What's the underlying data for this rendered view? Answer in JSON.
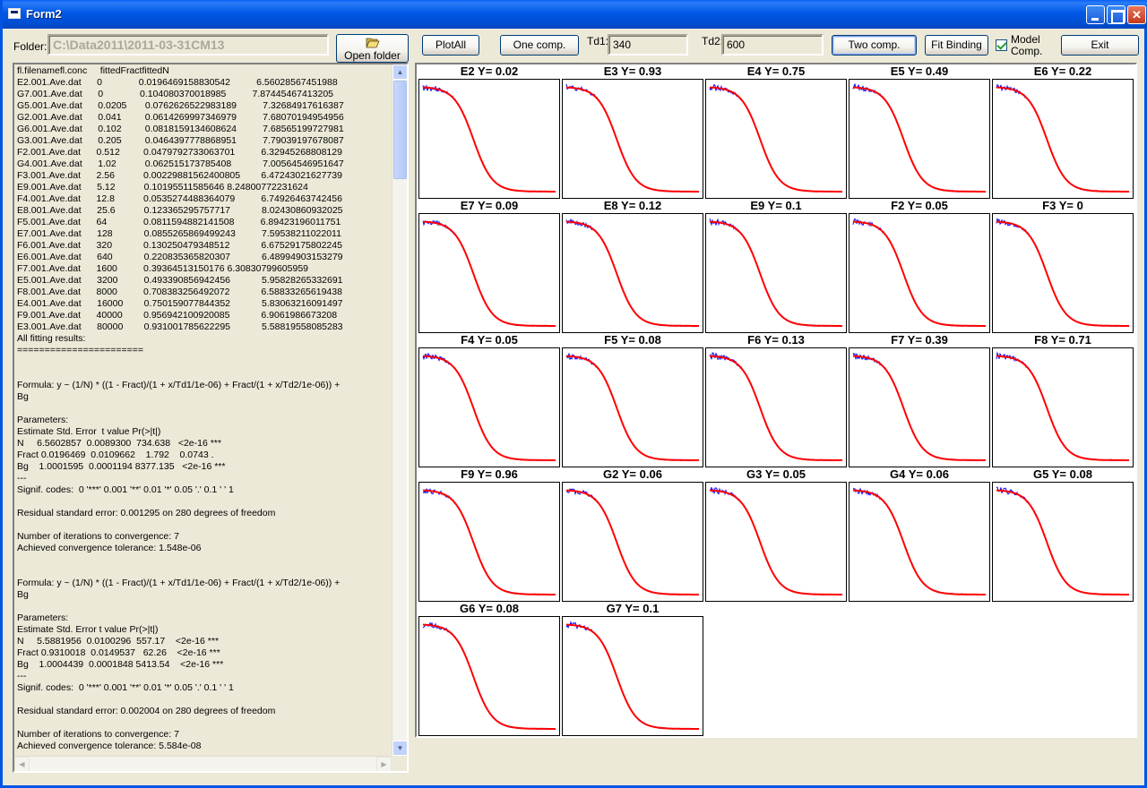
{
  "window": {
    "title": "Form2"
  },
  "folder": {
    "label": "Folder:",
    "path": "C:\\Data2011\\2011-03-31CM13",
    "open_label": "Open folder"
  },
  "toolbar": {
    "plotall": "PlotAll",
    "one_comp": "One comp.",
    "td1_label": "Td1:",
    "td1_value": "340",
    "td2_label": "Td2:",
    "td2_value": "600",
    "two_comp": "Two comp.",
    "fit_binding": "Fit Binding",
    "model_comp_line1": "Model",
    "model_comp_line2": "Comp.",
    "model_comp_checked": true,
    "exit": "Exit"
  },
  "results": {
    "lines": [
      "fl.filenamefl.conc     fittedFractfittedN",
      "E2.001.Ave.dat      0              0.0196469158830542          6.56028567451988",
      "G7.001.Ave.dat      0              0.104080370018985          7.87445467413205",
      "G5.001.Ave.dat      0.0205       0.0762626522983189          7.32684917616387",
      "G2.001.Ave.dat      0.041         0.0614269997346979          7.68070194954956",
      "G6.001.Ave.dat      0.102         0.0818159134608624          7.68565199727981",
      "G3.001.Ave.dat      0.205         0.0464397778868951          7.79039197678087",
      "F2.001.Ave.dat      0.512         0.0479792733063701          6.32945268808129",
      "G4.001.Ave.dat      1.02           0.062515173785408            7.00564546951647",
      "F3.001.Ave.dat      2.56           0.00229881562400805        6.47243021627739",
      "E9.001.Ave.dat      5.12           0.10195511585646 8.24800772231624",
      "F4.001.Ave.dat      12.8           0.0535274488364079          6.74926463742456",
      "E8.001.Ave.dat      25.6           0.123365295757717            8.02430860932025",
      "F5.001.Ave.dat      64              0.0811594882141508          6.89423196011751",
      "E7.001.Ave.dat      128            0.0855265869499243          7.59538211022011",
      "F6.001.Ave.dat      320            0.130250479348512            6.67529175802245",
      "E6.001.Ave.dat      640            0.220835365820307            6.48994903153279",
      "F7.001.Ave.dat      1600          0.39364513150176 6.30830799605959",
      "E5.001.Ave.dat      3200          0.493390856942456            5.95828265332691",
      "F8.001.Ave.dat      8000          0.708383256492072            6.58833265619438",
      "E4.001.Ave.dat      16000        0.750159077844352            5.83063216091497",
      "F9.001.Ave.dat      40000        0.956942100920085            6.9061986673208",
      "E3.001.Ave.dat      80000        0.931001785622295            5.58819558085283",
      "All fitting results:",
      "=======================",
      "",
      "",
      "Formula: y ~ (1/N) * ((1 - Fract)/(1 + x/Td1/1e-06) + Fract/(1 + x/Td2/1e-06)) +",
      "Bg",
      "",
      "Parameters:",
      "Estimate Std. Error  t value Pr(>|t|)",
      "N     6.5602857  0.0089300  734.638   <2e-16 ***",
      "Fract 0.0196469  0.0109662    1.792    0.0743 .",
      "Bg    1.0001595  0.0001194 8377.135   <2e-16 ***",
      "---",
      "Signif. codes:  0 '***' 0.001 '**' 0.01 '*' 0.05 '.' 0.1 ' ' 1",
      "",
      "Residual standard error: 0.001295 on 280 degrees of freedom",
      "",
      "Number of iterations to convergence: 7",
      "Achieved convergence tolerance: 1.548e-06",
      "",
      "",
      "Formula: y ~ (1/N) * ((1 - Fract)/(1 + x/Td1/1e-06) + Fract/(1 + x/Td2/1e-06)) +",
      "Bg",
      "",
      "Parameters:",
      "Estimate Std. Error t value Pr(>|t|)",
      "N     5.5881956  0.0100296  557.17    <2e-16 ***",
      "Fract 0.9310018  0.0149537   62.26    <2e-16 ***",
      "Bg    1.0004439  0.0001848 5413.54    <2e-16 ***",
      "---",
      "Signif. codes:  0 '***' 0.001 '**' 0.01 '*' 0.05 '.' 0.1 ' ' 1",
      "",
      "Residual standard error: 0.002004 on 280 degrees of freedom",
      "",
      "Number of iterations to convergence: 7",
      "Achieved convergence tolerance: 5.584e-08"
    ]
  },
  "plots": [
    {
      "title": "E2  Y= 0.02"
    },
    {
      "title": "E3  Y= 0.93"
    },
    {
      "title": "E4  Y= 0.75"
    },
    {
      "title": "E5  Y= 0.49"
    },
    {
      "title": "E6  Y= 0.22"
    },
    {
      "title": "E7  Y= 0.09"
    },
    {
      "title": "E8  Y= 0.12"
    },
    {
      "title": "E9  Y= 0.1"
    },
    {
      "title": "F2  Y= 0.05"
    },
    {
      "title": "F3  Y= 0"
    },
    {
      "title": "F4  Y= 0.05"
    },
    {
      "title": "F5  Y= 0.08"
    },
    {
      "title": "F6  Y= 0.13"
    },
    {
      "title": "F7  Y= 0.39"
    },
    {
      "title": "F8  Y= 0.71"
    },
    {
      "title": "F9  Y= 0.96"
    },
    {
      "title": "G2  Y= 0.06"
    },
    {
      "title": "G3  Y= 0.05"
    },
    {
      "title": "G4  Y= 0.06"
    },
    {
      "title": "G5  Y= 0.08"
    },
    {
      "title": "G6  Y= 0.08"
    },
    {
      "title": "G7  Y= 0.1"
    }
  ],
  "colors": {
    "data_line": "#0000ff",
    "fit_line": "#ff0000"
  },
  "icons": {
    "open_folder": "open-folder-icon",
    "window": "form-icon"
  }
}
